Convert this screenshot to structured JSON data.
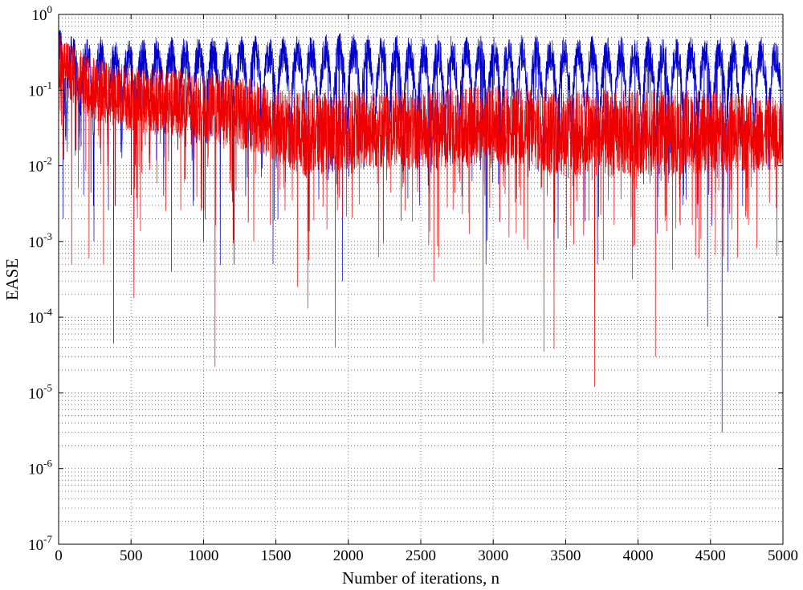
{
  "chart_data": {
    "type": "line",
    "xlabel": "Number of iterations, n",
    "ylabel": "EASE",
    "xlim": [
      0,
      5000
    ],
    "ylim": [
      1e-07,
      1
    ],
    "yscale": "log",
    "grid": true,
    "xticks": [
      0,
      500,
      1000,
      1500,
      2000,
      2500,
      3000,
      3500,
      4000,
      4500,
      5000
    ],
    "yticks": [
      {
        "value": 1e-07,
        "base": "10",
        "exp": "-7"
      },
      {
        "value": 1e-06,
        "base": "10",
        "exp": "-6"
      },
      {
        "value": 1e-05,
        "base": "10",
        "exp": "-5"
      },
      {
        "value": 0.0001,
        "base": "10",
        "exp": "-4"
      },
      {
        "value": 0.001,
        "base": "10",
        "exp": "-3"
      },
      {
        "value": 0.01,
        "base": "10",
        "exp": "-2"
      },
      {
        "value": 0.1,
        "base": "10",
        "exp": "-1"
      },
      {
        "value": 1,
        "base": "10",
        "exp": "0"
      }
    ],
    "series": [
      {
        "color": "#0000cc",
        "period": 97,
        "peak_envelope": [
          [
            0,
            0.45
          ],
          [
            100,
            0.3
          ],
          [
            500,
            0.28
          ],
          [
            1000,
            0.3
          ],
          [
            1500,
            0.3
          ],
          [
            2000,
            0.33
          ],
          [
            2500,
            0.3
          ],
          [
            3000,
            0.33
          ],
          [
            3500,
            0.3
          ],
          [
            4000,
            0.3
          ],
          [
            4500,
            0.3
          ],
          [
            5000,
            0.3
          ]
        ],
        "floor_envelope": [
          [
            0,
            0.01
          ],
          [
            1000,
            0.008
          ],
          [
            2000,
            0.005
          ],
          [
            3000,
            0.005
          ],
          [
            4000,
            0.006
          ],
          [
            5000,
            0.005
          ]
        ],
        "deep_dips": [
          [
            30,
            0.002
          ],
          [
            380,
            4.5e-05
          ],
          [
            520,
            0.0003
          ],
          [
            780,
            0.0004
          ],
          [
            1000,
            0.001
          ],
          [
            1480,
            0.0005
          ],
          [
            1960,
            0.0003
          ],
          [
            2950,
            0.0005
          ],
          [
            3420,
            0.0004
          ],
          [
            3720,
            0.0005
          ],
          [
            4480,
            7.5e-05
          ],
          [
            4580,
            3e-06
          ],
          [
            4620,
            0.0004
          ]
        ]
      },
      {
        "color": "#ee0000",
        "peak_envelope": [
          [
            0,
            0.6
          ],
          [
            50,
            0.45
          ],
          [
            150,
            0.35
          ],
          [
            300,
            0.25
          ],
          [
            600,
            0.2
          ],
          [
            1000,
            0.18
          ],
          [
            1300,
            0.15
          ],
          [
            1500,
            0.1
          ],
          [
            2000,
            0.1
          ],
          [
            2500,
            0.1
          ],
          [
            3000,
            0.12
          ],
          [
            3500,
            0.1
          ],
          [
            4000,
            0.1
          ],
          [
            4500,
            0.1
          ],
          [
            5000,
            0.08
          ]
        ],
        "center_envelope": [
          [
            0,
            0.3
          ],
          [
            200,
            0.12
          ],
          [
            500,
            0.08
          ],
          [
            1000,
            0.06
          ],
          [
            1400,
            0.04
          ],
          [
            1700,
            0.02
          ],
          [
            2000,
            0.025
          ],
          [
            2500,
            0.025
          ],
          [
            3000,
            0.03
          ],
          [
            3500,
            0.02
          ],
          [
            4000,
            0.02
          ],
          [
            5000,
            0.025
          ]
        ],
        "deep_dips": [
          [
            90,
            0.0005
          ],
          [
            210,
            0.0006
          ],
          [
            310,
            0.0005
          ],
          [
            520,
            0.00018
          ],
          [
            1080,
            2.2e-05
          ],
          [
            1650,
            0.00025
          ],
          [
            1720,
            0.00013
          ],
          [
            1910,
            4e-05
          ],
          [
            2590,
            0.0003
          ],
          [
            2930,
            4.5e-05
          ],
          [
            3350,
            3.5e-05
          ],
          [
            3420,
            3.8e-05
          ],
          [
            3700,
            1.2e-05
          ],
          [
            4120,
            3e-05
          ],
          [
            4420,
            0.0006
          ]
        ]
      }
    ]
  }
}
